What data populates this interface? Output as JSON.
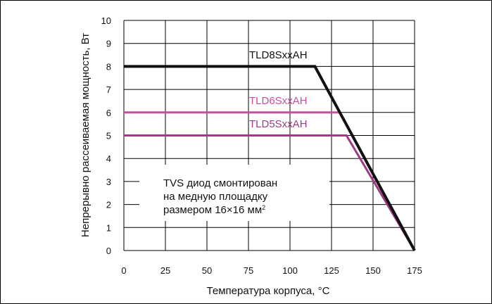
{
  "chart_data": {
    "type": "line",
    "xlabel": "Температура корпуса, °C",
    "ylabel": "Непрерывно рассеиваемая мощность, Вт",
    "xlim": [
      0,
      175
    ],
    "ylim": [
      0,
      10
    ],
    "xticks": [
      "0",
      "25",
      "50",
      "75",
      "100",
      "125",
      "150",
      "175"
    ],
    "yticks": [
      "0",
      "1",
      "2",
      "3",
      "4",
      "5",
      "6",
      "7",
      "8",
      "9",
      "10"
    ],
    "grid": true,
    "series": [
      {
        "name": "TLD8SxxAH",
        "color": "#111111",
        "x": [
          0,
          115,
          175
        ],
        "y": [
          8,
          8,
          0
        ]
      },
      {
        "name": "TLD6SxxAH",
        "color": "#c64fa0",
        "x": [
          0,
          130,
          175
        ],
        "y": [
          6,
          6,
          0
        ]
      },
      {
        "name": "TLD5SxxAH",
        "color": "#a03a86",
        "x": [
          0,
          134,
          175
        ],
        "y": [
          5,
          5,
          0
        ]
      }
    ],
    "annotation": {
      "line1": "TVS диод смонтирован",
      "line2": "на медную площадку",
      "line3": "размером 16×16 мм",
      "sup": "2"
    }
  }
}
